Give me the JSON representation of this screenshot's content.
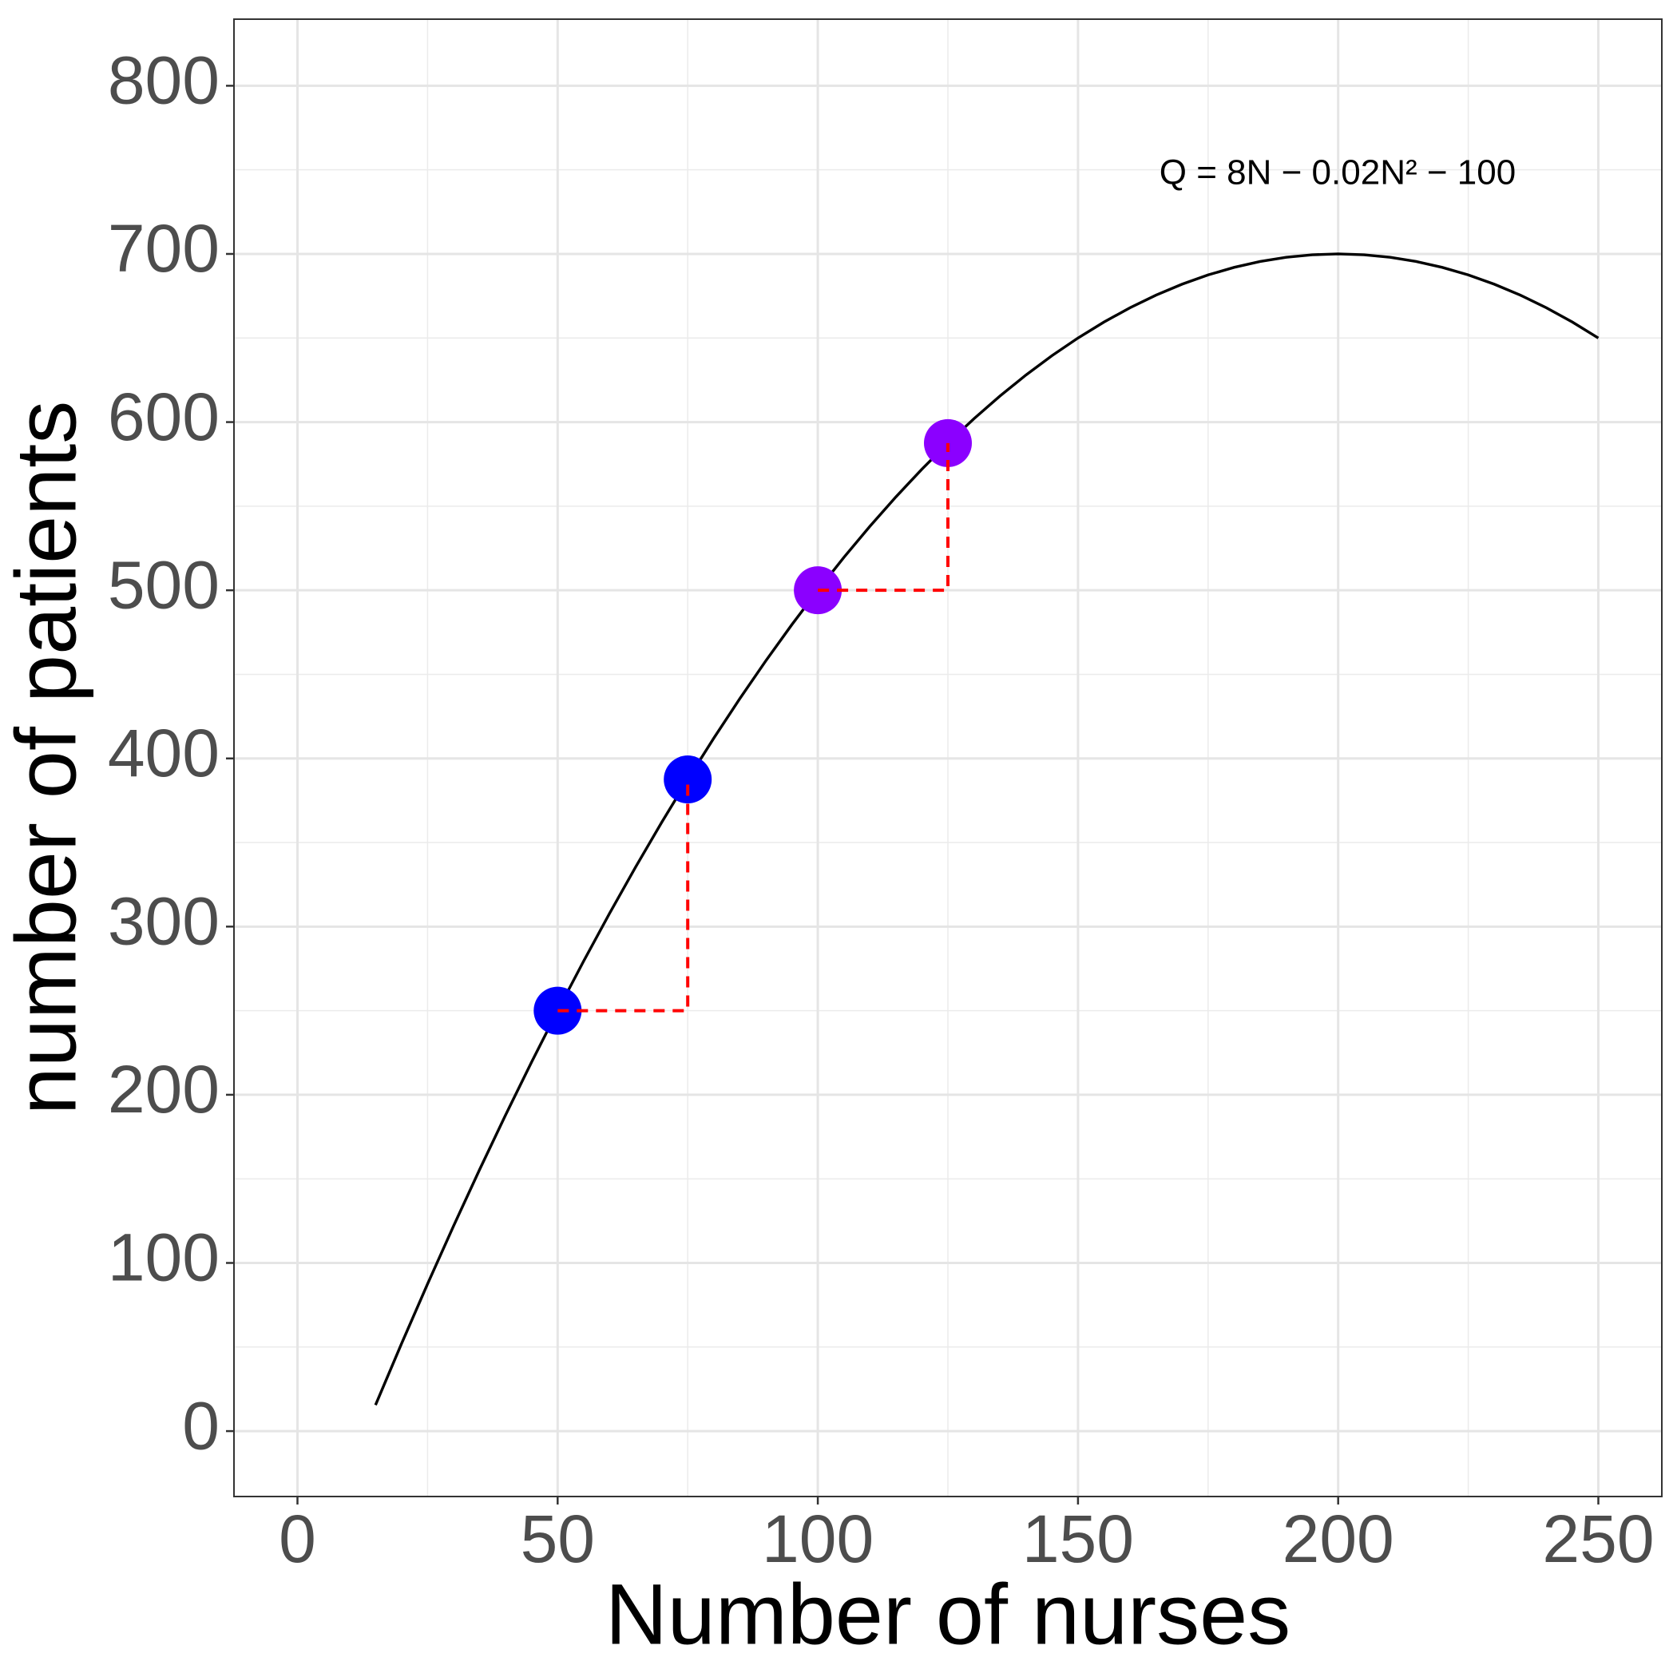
{
  "chart_data": {
    "type": "line",
    "x_label": "Number of nurses",
    "y_label": "number of patients",
    "annotation": "Q = 8N − 0.02N² − 100",
    "xlim": [
      -12.2,
      262.2
    ],
    "ylim": [
      -38.9,
      839.6
    ],
    "xticks": [
      0,
      50,
      100,
      150,
      200,
      250
    ],
    "yticks": [
      0,
      100,
      200,
      300,
      400,
      500,
      600,
      700,
      800
    ],
    "grid": true,
    "series": [
      {
        "type": "line",
        "color": "#000000",
        "x": [
          15,
          20,
          25,
          30,
          35,
          40,
          45,
          50,
          55,
          60,
          65,
          70,
          75,
          80,
          85,
          90,
          95,
          100,
          105,
          110,
          115,
          120,
          125,
          130,
          135,
          140,
          145,
          150,
          155,
          160,
          165,
          170,
          175,
          180,
          185,
          190,
          195,
          200,
          205,
          210,
          215,
          220,
          225,
          230,
          235,
          240,
          245,
          250
        ],
        "values": [
          15.5,
          52,
          87.5,
          122,
          155.5,
          188,
          219.5,
          250,
          279.5,
          308,
          335.5,
          362,
          387.5,
          412,
          435.5,
          458,
          479.5,
          500,
          519.5,
          538,
          555.5,
          572,
          587.5,
          602,
          615.5,
          628,
          639.5,
          650,
          659.5,
          668,
          675.5,
          682,
          687.5,
          692,
          695.5,
          698,
          699.5,
          700,
          699.5,
          698,
          695.5,
          692,
          687.5,
          682,
          675.5,
          668,
          659.5,
          650
        ]
      },
      {
        "type": "scatter",
        "color": "#0000ff",
        "x": [
          50,
          75
        ],
        "values": [
          250,
          387.5
        ]
      },
      {
        "type": "scatter",
        "color": "#8b00ff",
        "x": [
          100,
          125
        ],
        "values": [
          500,
          587.5
        ]
      },
      {
        "type": "line",
        "color": "#ff0000",
        "dashed": true,
        "x": [
          50,
          75,
          75
        ],
        "values": [
          250,
          250,
          387.5
        ]
      },
      {
        "type": "line",
        "color": "#ff0000",
        "dashed": true,
        "x": [
          100,
          125,
          125
        ],
        "values": [
          500,
          500,
          587.5
        ]
      }
    ]
  }
}
